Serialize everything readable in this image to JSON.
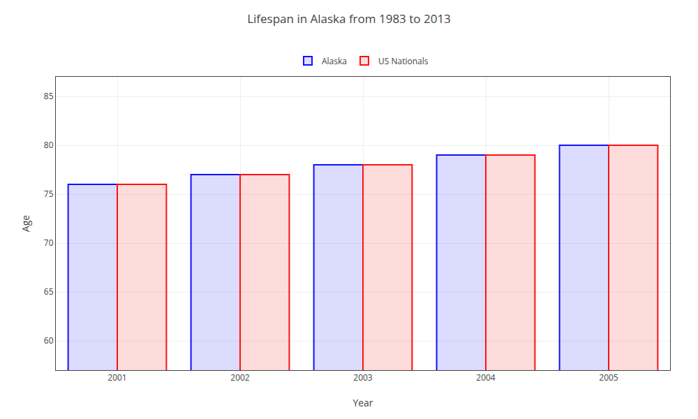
{
  "chart_data": {
    "type": "bar",
    "title": "Lifespan in Alaska from 1983 to 2013",
    "xlabel": "Year",
    "ylabel": "Age",
    "categories": [
      "2001",
      "2002",
      "2003",
      "2004",
      "2005"
    ],
    "series": [
      {
        "name": "Alaska",
        "color": "#1111ff",
        "values": [
          76,
          77,
          78,
          79,
          80
        ]
      },
      {
        "name": "US Nationals",
        "color": "#ff1111",
        "values": [
          76,
          77,
          78,
          79,
          80
        ]
      }
    ],
    "ylim": [
      57,
      87
    ],
    "yticks": [
      60,
      65,
      70,
      75,
      80,
      85
    ],
    "grid": true,
    "legend": "top"
  }
}
